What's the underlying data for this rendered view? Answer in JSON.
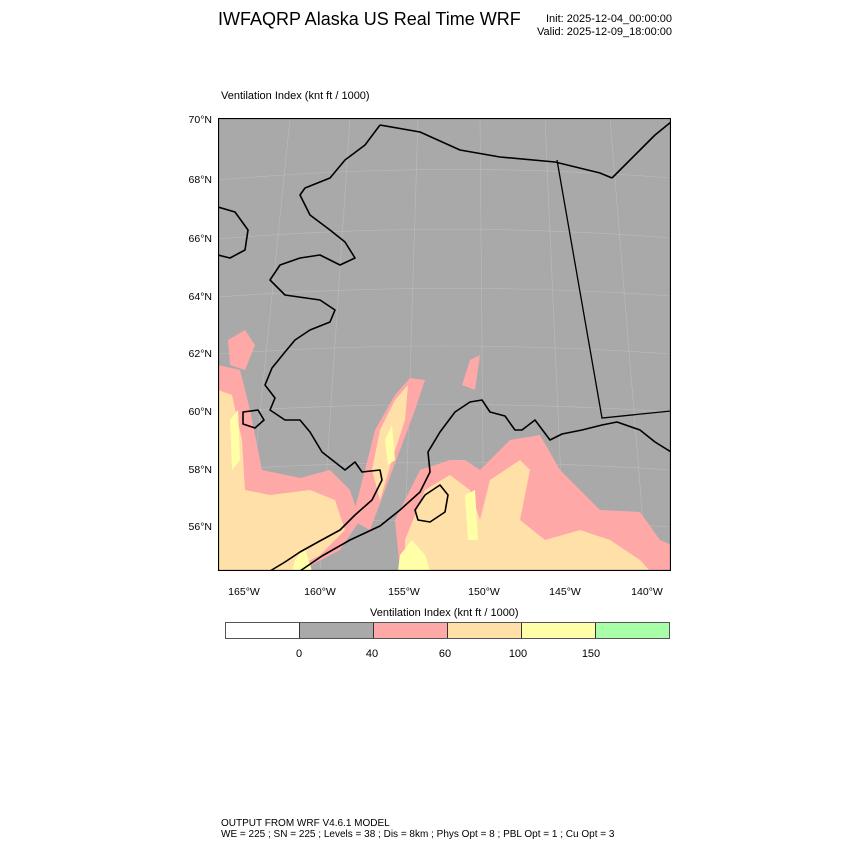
{
  "header": {
    "title": "IWFAQRP Alaska US Real Time WRF",
    "init": "Init: 2025-12-04_00:00:00",
    "valid": "Valid: 2025-12-09_18:00:00"
  },
  "map": {
    "subtitle": "Ventilation Index   (knt ft / 1000)",
    "lat_labels": [
      "70°N",
      "68°N",
      "66°N",
      "64°N",
      "62°N",
      "60°N",
      "58°N",
      "56°N"
    ],
    "lon_labels": [
      "165°W",
      "160°W",
      "155°W",
      "150°W",
      "145°W",
      "140°W"
    ],
    "colors": {
      "land_background": "#a9a9a9",
      "pink": "#ffa8a8",
      "tan": "#ffe0a8",
      "yellow": "#ffffa8",
      "green": "#a8ffa8"
    }
  },
  "colorbar": {
    "title": "Ventilation Index  (knt ft / 1000)",
    "colors": [
      "#ffffff",
      "#a9a9a9",
      "#ffa8a8",
      "#ffe0a8",
      "#ffffa8",
      "#a8ffa8"
    ],
    "labels": [
      "0",
      "40",
      "60",
      "100",
      "150"
    ]
  },
  "footer": {
    "line1": "OUTPUT FROM WRF V4.6.1 MODEL",
    "line2": "WE = 225 ; SN = 225 ; Levels = 38 ; Dis = 8km ; Phys Opt = 8 ; PBL Opt = 1 ; Cu Opt = 3"
  }
}
